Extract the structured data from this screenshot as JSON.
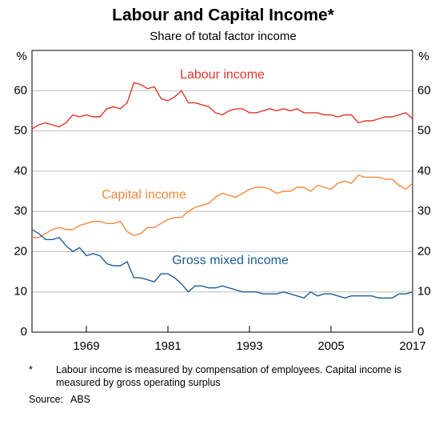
{
  "chart_data": {
    "type": "line",
    "title": "Labour and Capital Income*",
    "subtitle": "Share of total factor income",
    "y_unit": "%",
    "x": [
      1961,
      1962,
      1963,
      1964,
      1965,
      1966,
      1967,
      1968,
      1969,
      1970,
      1971,
      1972,
      1973,
      1974,
      1975,
      1976,
      1977,
      1978,
      1979,
      1980,
      1981,
      1982,
      1983,
      1984,
      1985,
      1986,
      1987,
      1988,
      1989,
      1990,
      1991,
      1992,
      1993,
      1994,
      1995,
      1996,
      1997,
      1998,
      1999,
      2000,
      2001,
      2002,
      2003,
      2004,
      2005,
      2006,
      2007,
      2008,
      2009,
      2010,
      2011,
      2012,
      2013,
      2014,
      2015,
      2016,
      2017
    ],
    "series": [
      {
        "name": "Labour income",
        "color": "#e0362c",
        "values": [
          50.5,
          51.5,
          52,
          51.5,
          51,
          52,
          54,
          53.5,
          54,
          53.5,
          53.5,
          55.5,
          56,
          55.5,
          57,
          62,
          61.5,
          60.5,
          61,
          58,
          57.5,
          58.5,
          60,
          57,
          57,
          56.5,
          56,
          54.5,
          54,
          55,
          55.5,
          55.5,
          54.5,
          54.5,
          55,
          55.5,
          55,
          55.5,
          55,
          55.5,
          54.5,
          54.5,
          54.5,
          54,
          54,
          53.5,
          54,
          54,
          52,
          52.5,
          52.5,
          53,
          53.5,
          53.5,
          54,
          54.5,
          53
        ]
      },
      {
        "name": "Capital income",
        "color": "#f5873a",
        "values": [
          23.5,
          23.5,
          24.5,
          25.5,
          26,
          25.5,
          25.5,
          26.5,
          27,
          27.5,
          27.5,
          27,
          27,
          27.5,
          25,
          24,
          24.5,
          26,
          26,
          27,
          28,
          28.5,
          28.5,
          30,
          31,
          31.5,
          32,
          33.5,
          34.5,
          34,
          33.5,
          34.5,
          35.5,
          36,
          36,
          35.5,
          34.5,
          35,
          35,
          36,
          36,
          35,
          36.5,
          36,
          35.5,
          37,
          37.5,
          37,
          39,
          38.5,
          38.5,
          38.5,
          38,
          38,
          36.5,
          35.5,
          37
        ]
      },
      {
        "name": "Gross mixed income",
        "color": "#1d5d98",
        "values": [
          25.5,
          24.5,
          23,
          23,
          23.5,
          21.5,
          20,
          21,
          19,
          19.5,
          19,
          17,
          16.5,
          16.5,
          17.5,
          13.5,
          13.5,
          13,
          12.5,
          14.5,
          14.5,
          13.5,
          12,
          10,
          11.5,
          11.5,
          11,
          11,
          11.5,
          11,
          10.5,
          10,
          10,
          10,
          9.5,
          9.5,
          9.5,
          10,
          9.5,
          9,
          8.5,
          10,
          9,
          9.5,
          9.5,
          9,
          8.5,
          9,
          9,
          9,
          9,
          8.5,
          8.5,
          8.5,
          9.5,
          9.5,
          10
        ]
      }
    ],
    "xlim": [
      1961,
      2017
    ],
    "xticks": [
      1969,
      1981,
      1993,
      2005,
      2017
    ],
    "ylim": [
      0,
      70
    ],
    "yticks": [
      0,
      10,
      20,
      30,
      40,
      50,
      60
    ],
    "grid": true,
    "footnote_marker": "*",
    "footnote": "Labour income is measured by compensation of employees. Capital income is measured by gross operating surplus",
    "source_label": "Source:",
    "source": "ABS"
  }
}
